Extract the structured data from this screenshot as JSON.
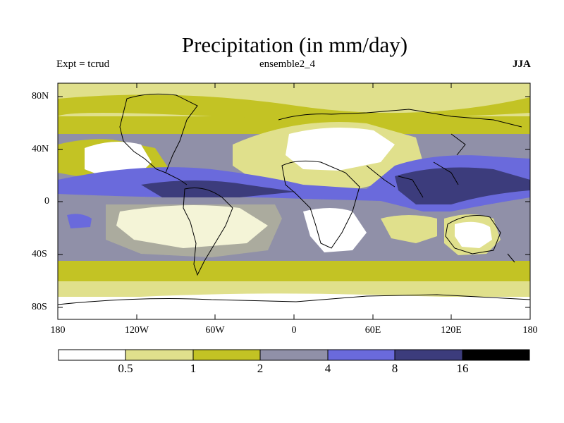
{
  "title": "Precipitation (in mm/day)",
  "subtitle_left": "Expt = tcrud",
  "subtitle_center": "ensemble2_4",
  "subtitle_right": "JJA",
  "lat_labels": [
    "80N",
    "40N",
    "0",
    "40S",
    "80S"
  ],
  "lon_labels": [
    "180",
    "120W",
    "60W",
    "0",
    "60E",
    "120E",
    "180"
  ],
  "colorbar": {
    "ticks": [
      "0.5",
      "1",
      "2",
      "4",
      "8",
      "16"
    ],
    "colors": [
      "#ffffff",
      "#e0e08c",
      "#c3c324",
      "#9090a8",
      "#6a6adc",
      "#3c3c7c",
      "#000000"
    ]
  }
}
